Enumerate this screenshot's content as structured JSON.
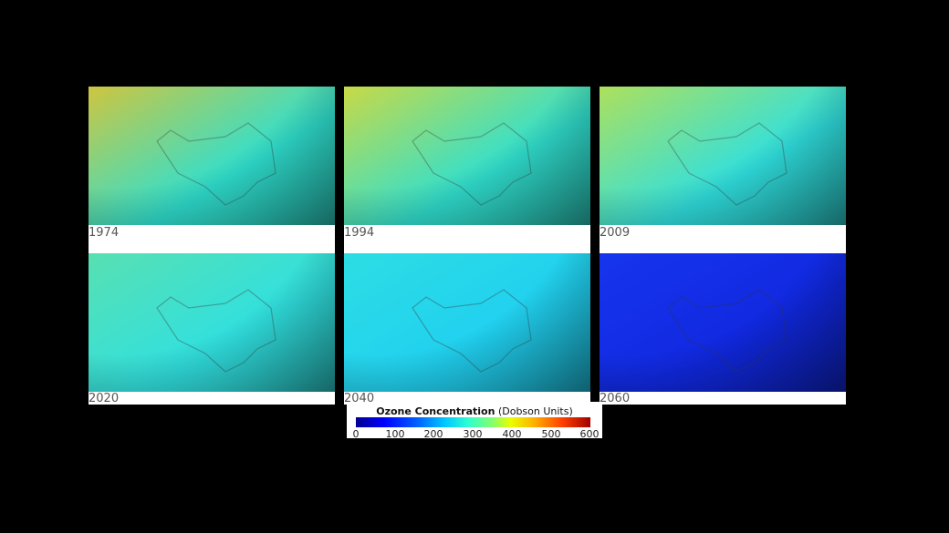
{
  "panels": [
    {
      "year": "1974",
      "palette": {
        "top": "#e84a14",
        "mid": "#f0c020",
        "low": "#2fe0d0"
      }
    },
    {
      "year": "1994",
      "palette": {
        "top": "#f08018",
        "mid": "#e8d828",
        "low": "#30e0d0"
      }
    },
    {
      "year": "2009",
      "palette": {
        "top": "#f0a818",
        "mid": "#c8e040",
        "low": "#30e0e0"
      }
    },
    {
      "year": "2020",
      "palette": {
        "top": "#80e078",
        "mid": "#60e0a8",
        "low": "#30e0e0"
      }
    },
    {
      "year": "2040",
      "palette": {
        "top": "#30e0d8",
        "mid": "#30e0e0",
        "low": "#20d0f0"
      }
    },
    {
      "year": "2060",
      "palette": {
        "top": "#1030e8",
        "mid": "#1838f0",
        "low": "#1028e0"
      }
    }
  ],
  "legend": {
    "title": "Ozone Concentration",
    "units": "(Dobson Units)",
    "ticks": [
      "0",
      "100",
      "200",
      "300",
      "400",
      "500",
      "600"
    ]
  }
}
